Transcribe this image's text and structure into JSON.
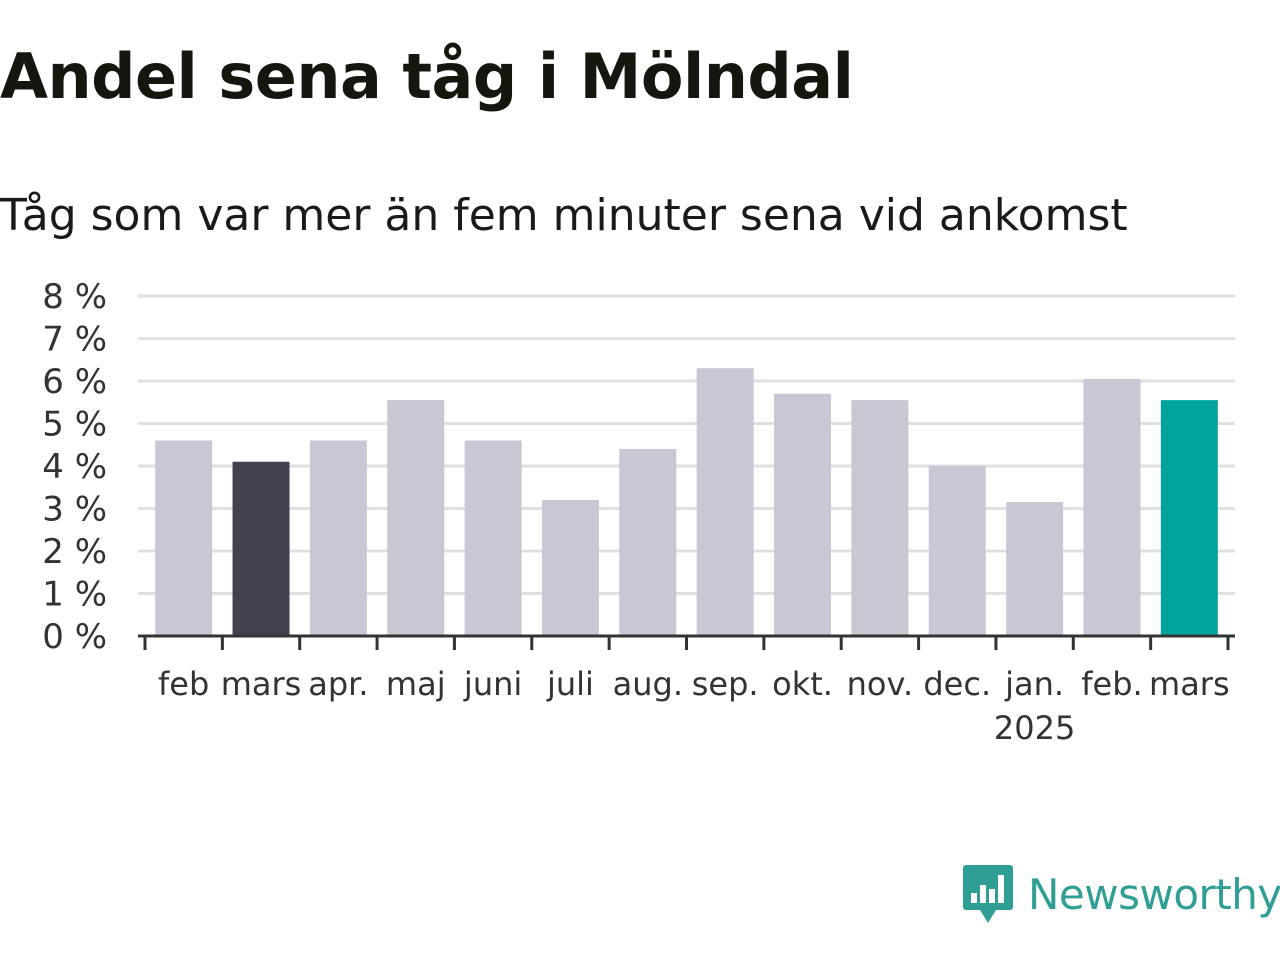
{
  "title": "Andel sena tåg i Mölndal",
  "subtitle": "Tåg som var mer än fem minuter sena vid ankomst",
  "brand": {
    "name": "Newsworthy",
    "color": "#2f9f96"
  },
  "colors": {
    "default_bar": "#c8c7d3",
    "previous_year_bar": "#42414f",
    "latest_bar": "#00a49a",
    "grid": "#e0e0e0",
    "axis": "#333333",
    "tick_text": "#333333"
  },
  "chart_data": {
    "type": "bar",
    "categories": [
      "feb",
      "mars",
      "apr.",
      "maj",
      "juni",
      "juli",
      "aug.",
      "sep.",
      "okt.",
      "nov.",
      "dec.",
      "jan.",
      "feb.",
      "mars"
    ],
    "year_label": {
      "text": "2025",
      "under_category_index": 11
    },
    "values": [
      4.6,
      4.1,
      4.6,
      5.55,
      4.6,
      3.2,
      4.4,
      6.3,
      5.7,
      5.55,
      4.0,
      3.15,
      6.05,
      5.55
    ],
    "bar_highlight": [
      "default",
      "previous_year",
      "default",
      "default",
      "default",
      "default",
      "default",
      "default",
      "default",
      "default",
      "default",
      "default",
      "default",
      "latest"
    ],
    "y_ticks": [
      "0 %",
      "1 %",
      "2 %",
      "3 %",
      "4 %",
      "5 %",
      "6 %",
      "7 %",
      "8 %"
    ],
    "ylim": [
      0,
      8
    ],
    "xlabel": "",
    "ylabel": "",
    "grid": true,
    "legend": "none"
  }
}
